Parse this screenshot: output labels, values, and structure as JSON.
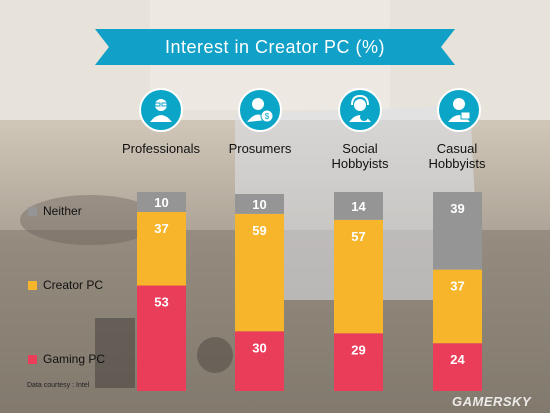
{
  "title": "Interest in Creator PC (%)",
  "footnote": "Data courtesy : Intel",
  "watermark": "GAMERSKY",
  "colors": {
    "banner": "#11a0c8",
    "neither": "#959595",
    "creator": "#f6b52a",
    "gaming": "#ea3d5a",
    "icon": "#0aa5c7"
  },
  "categories": [
    {
      "label": "Professionals",
      "icon": "professional-icon"
    },
    {
      "label": "Prosumers",
      "icon": "prosumer-icon"
    },
    {
      "label": "Social\nHobbyists",
      "icon": "social-hobbyist-icon"
    },
    {
      "label": "Casual\nHobbyists",
      "icon": "casual-hobbyist-icon"
    }
  ],
  "legend": [
    "Neither",
    "Creator PC",
    "Gaming PC"
  ],
  "chart_data": {
    "type": "bar",
    "stacked": true,
    "title": "Interest in Creator PC (%)",
    "categories": [
      "Professionals",
      "Prosumers",
      "Social Hobbyists",
      "Casual Hobbyists"
    ],
    "series": [
      {
        "name": "Gaming PC",
        "values": [
          53,
          30,
          29,
          24
        ]
      },
      {
        "name": "Creator PC",
        "values": [
          37,
          59,
          57,
          37
        ]
      },
      {
        "name": "Neither",
        "values": [
          10,
          10,
          14,
          39
        ]
      }
    ],
    "ylim": [
      0,
      100
    ],
    "grid": false,
    "legend_position": "left"
  }
}
